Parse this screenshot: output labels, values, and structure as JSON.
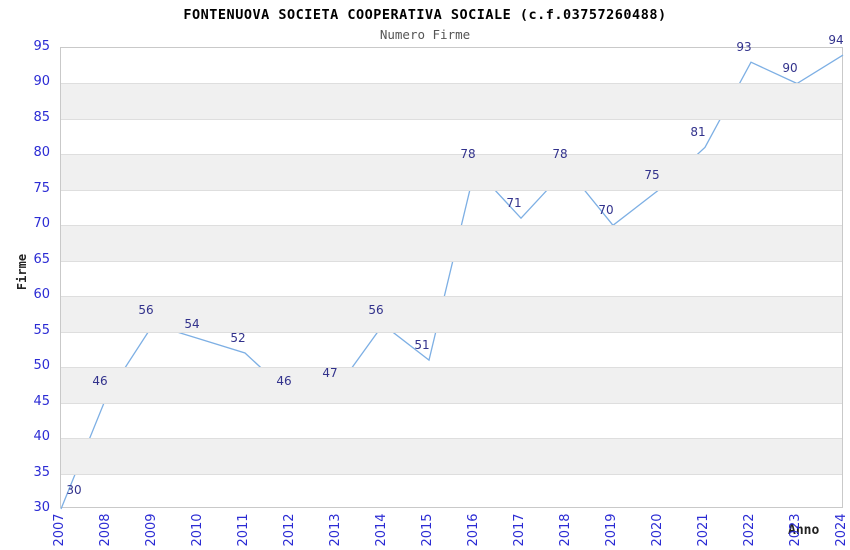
{
  "header": {
    "title": "FONTENUOVA SOCIETA COOPERATIVA SOCIALE (c.f.03757260488)",
    "subtitle": "Numero Firme"
  },
  "chart_data": {
    "type": "line",
    "title": "FONTENUOVA SOCIETA COOPERATIVA SOCIALE (c.f.03757260488)",
    "subtitle": "Numero Firme",
    "xlabel": "Anno",
    "ylabel": "Firme",
    "categories": [
      "2007",
      "2008",
      "2009",
      "2010",
      "2011",
      "2012",
      "2013",
      "2014",
      "2015",
      "2016",
      "2017",
      "2018",
      "2019",
      "2020",
      "2021",
      "2022",
      "2023",
      "2024"
    ],
    "values": [
      30,
      46,
      56,
      54,
      52,
      46,
      47,
      56,
      51,
      78,
      71,
      78,
      70,
      75,
      81,
      93,
      90,
      94
    ],
    "ylim": [
      30,
      95
    ],
    "yticks": [
      30,
      35,
      40,
      45,
      50,
      55,
      60,
      65,
      70,
      75,
      80,
      85,
      90,
      95
    ],
    "grid": true,
    "legend_position": "none",
    "band_fill": "alternating horizontal 5-unit bands",
    "colors": {
      "line": "#7dafe4",
      "tick_label": "#2b2bd4",
      "data_label": "#32328c",
      "band_gray": "#f0f0f0",
      "gridline": "#dedede",
      "plot_border": "#c9c9c9",
      "title": "#000000",
      "subtitle": "#555555"
    }
  }
}
